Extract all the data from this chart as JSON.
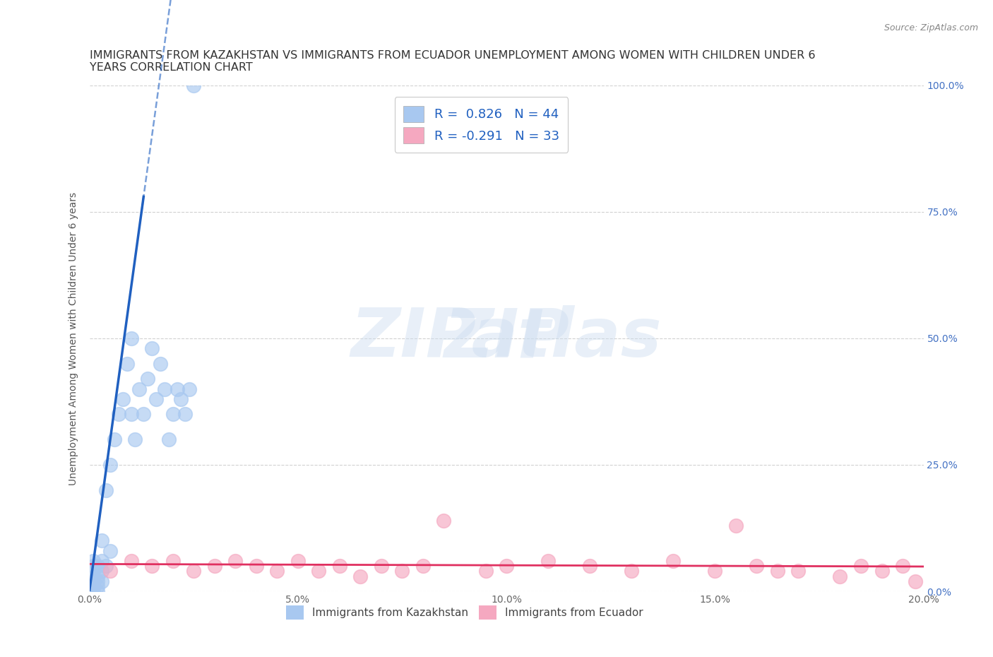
{
  "title_line1": "IMMIGRANTS FROM KAZAKHSTAN VS IMMIGRANTS FROM ECUADOR UNEMPLOYMENT AMONG WOMEN WITH CHILDREN UNDER 6",
  "title_line2": "YEARS CORRELATION CHART",
  "source": "Source: ZipAtlas.com",
  "ylabel": "Unemployment Among Women with Children Under 6 years",
  "xlim": [
    0.0,
    0.2
  ],
  "ylim": [
    0.0,
    1.0
  ],
  "xticks": [
    0.0,
    0.05,
    0.1,
    0.15,
    0.2
  ],
  "yticks": [
    0.0,
    0.25,
    0.5,
    0.75,
    1.0
  ],
  "ytick_labels": [
    "0.0%",
    "25.0%",
    "50.0%",
    "75.0%",
    "100.0%"
  ],
  "xtick_labels": [
    "0.0%",
    "5.0%",
    "10.0%",
    "15.0%",
    "20.0%"
  ],
  "kazakhstan_color": "#a8c8f0",
  "ecuador_color": "#f5a8c0",
  "kazakhstan_line_color": "#2060c0",
  "ecuador_line_color": "#e03060",
  "legend_kaz_R": "0.826",
  "legend_kaz_N": "44",
  "legend_ecu_R": "-0.291",
  "legend_ecu_N": "33",
  "kazakhstan_x": [
    0.0,
    0.0,
    0.001,
    0.001,
    0.001,
    0.001,
    0.001,
    0.001,
    0.001,
    0.001,
    0.002,
    0.002,
    0.002,
    0.002,
    0.002,
    0.003,
    0.003,
    0.003,
    0.003,
    0.004,
    0.004,
    0.005,
    0.005,
    0.006,
    0.007,
    0.008,
    0.009,
    0.01,
    0.01,
    0.011,
    0.012,
    0.013,
    0.014,
    0.015,
    0.016,
    0.017,
    0.018,
    0.019,
    0.02,
    0.021,
    0.022,
    0.023,
    0.024,
    0.025
  ],
  "kazakhstan_y": [
    0.01,
    0.02,
    0.0,
    0.01,
    0.02,
    0.02,
    0.03,
    0.04,
    0.05,
    0.06,
    0.0,
    0.01,
    0.02,
    0.03,
    0.05,
    0.02,
    0.04,
    0.06,
    0.1,
    0.05,
    0.2,
    0.08,
    0.25,
    0.3,
    0.35,
    0.38,
    0.45,
    0.35,
    0.5,
    0.3,
    0.4,
    0.35,
    0.42,
    0.48,
    0.38,
    0.45,
    0.4,
    0.3,
    0.35,
    0.4,
    0.38,
    0.35,
    0.4,
    1.0
  ],
  "ecuador_x": [
    0.005,
    0.01,
    0.015,
    0.02,
    0.025,
    0.03,
    0.035,
    0.04,
    0.045,
    0.05,
    0.055,
    0.06,
    0.065,
    0.07,
    0.075,
    0.08,
    0.085,
    0.095,
    0.1,
    0.11,
    0.12,
    0.13,
    0.14,
    0.15,
    0.155,
    0.16,
    0.165,
    0.17,
    0.18,
    0.185,
    0.19,
    0.195,
    0.198
  ],
  "ecuador_y": [
    0.04,
    0.06,
    0.05,
    0.06,
    0.04,
    0.05,
    0.06,
    0.05,
    0.04,
    0.06,
    0.04,
    0.05,
    0.03,
    0.05,
    0.04,
    0.05,
    0.14,
    0.04,
    0.05,
    0.06,
    0.05,
    0.04,
    0.06,
    0.04,
    0.13,
    0.05,
    0.04,
    0.04,
    0.03,
    0.05,
    0.04,
    0.05,
    0.02
  ],
  "background_color": "#ffffff",
  "grid_color": "#cccccc",
  "title_color": "#333333",
  "title_fontsize": 11.5,
  "axis_label_fontsize": 10,
  "tick_fontsize": 10,
  "right_tick_color": "#4472c4"
}
